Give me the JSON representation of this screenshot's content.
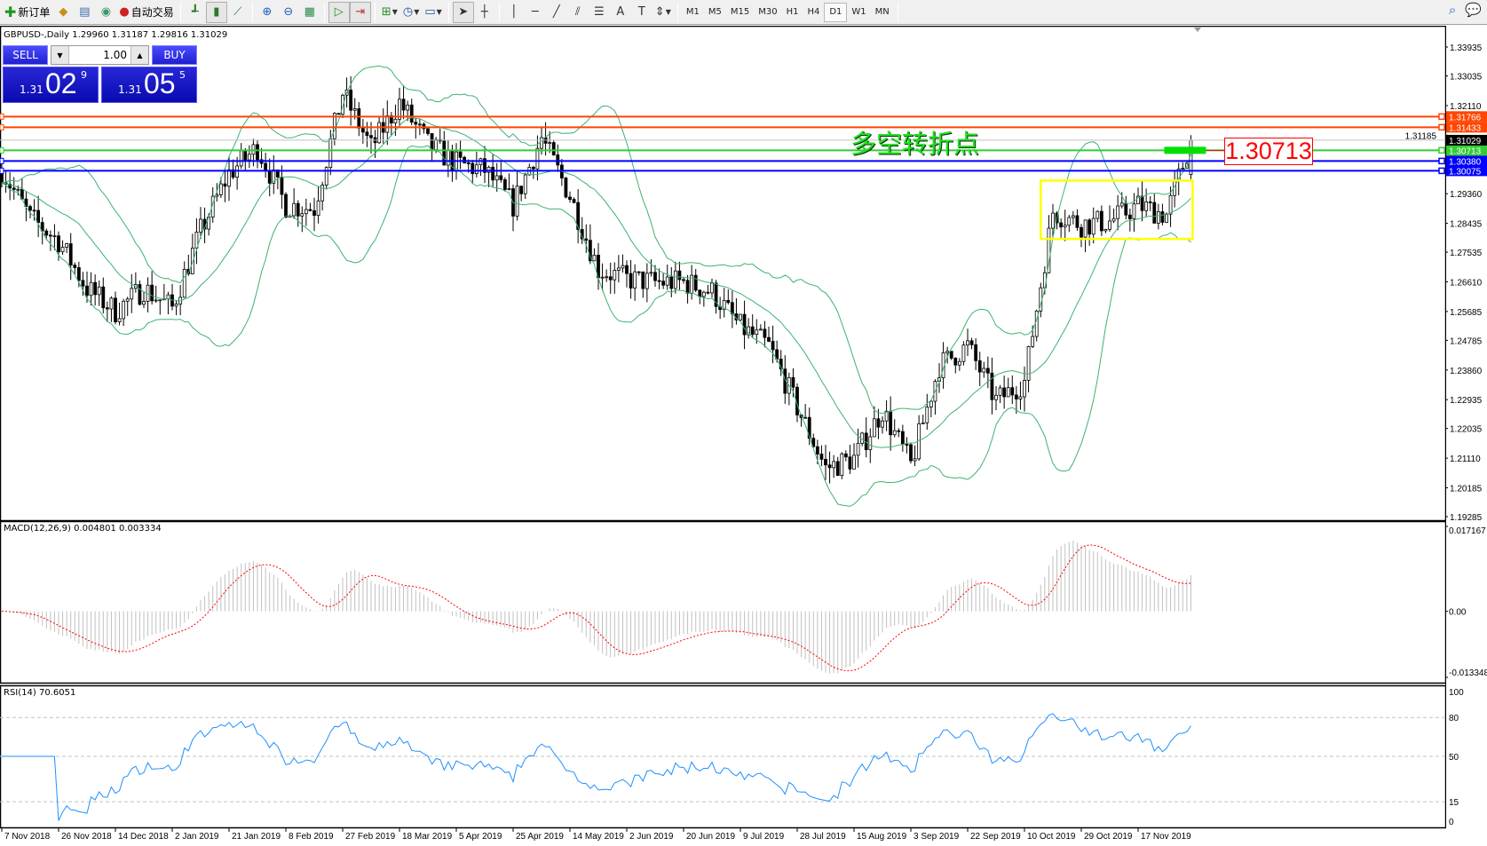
{
  "toolbar": {
    "new_order": "新订单",
    "auto_trading": "自动交易",
    "timeframes": [
      "M1",
      "M5",
      "M15",
      "M30",
      "H1",
      "H4",
      "D1",
      "W1",
      "MN"
    ],
    "active_timeframe": "D1",
    "icons": [
      "new-order-icon",
      "market-watch-icon",
      "data-window-icon",
      "navigator-icon",
      "auto-trading-icon",
      "bar-chart-icon",
      "candlestick-icon",
      "line-chart-icon",
      "zoom-in-icon",
      "zoom-out-icon",
      "tile-windows-icon",
      "auto-scroll-icon",
      "chart-shift-icon",
      "indicators-icon",
      "period-icon",
      "templates-icon",
      "cursor-icon",
      "crosshair-icon",
      "vertical-line-icon",
      "horizontal-line-icon",
      "trendline-icon",
      "fibonacci-fan-icon",
      "fibonacci-retracement-icon",
      "text-icon",
      "text-label-icon",
      "arrows-icon",
      "search-icon",
      "chat-icon"
    ]
  },
  "chart": {
    "header": "GBPUSD-,Daily  1.29960 1.31187 1.29816 1.31029",
    "trade_panel": {
      "sell": "SELL",
      "buy": "BUY",
      "lot": "1.00",
      "bid_prefix": "1.31",
      "bid_big": "02",
      "bid_sup": "9",
      "ask_prefix": "1.31",
      "ask_big": "05",
      "ask_sup": "5"
    },
    "annotation": "多空转折点",
    "price_label": "1.30713",
    "price_axis": [
      "1.33935",
      "1.33035",
      "1.32110",
      "1.29360",
      "1.28435",
      "1.27535",
      "1.26610",
      "1.25685",
      "1.24785",
      "1.23860",
      "1.22935",
      "1.22035",
      "1.21110",
      "1.20185",
      "1.19285"
    ],
    "hidden_axis_label": "1.31185",
    "bid": {
      "value": "1.31029",
      "color": "#000000"
    },
    "levels": [
      {
        "value": "1.31766",
        "color": "#ff4500"
      },
      {
        "value": "1.31433",
        "color": "#ff4500"
      },
      {
        "value": "1.30713",
        "color": "#32cd32"
      },
      {
        "value": "1.30380",
        "color": "#0000ff"
      },
      {
        "value": "1.30075",
        "color": "#0000ff"
      }
    ],
    "consolidation_box": {
      "top": 1.2977,
      "bottom": 1.2795,
      "color": "#ffff00"
    },
    "dates": [
      "7 Nov 2018",
      "26 Nov 2018",
      "14 Dec 2018",
      "2 Jan 2019",
      "21 Jan 2019",
      "8 Feb 2019",
      "27 Feb 2019",
      "18 Mar 2019",
      "5 Apr 2019",
      "25 Apr 2019",
      "14 May 2019",
      "2 Jun 2019",
      "20 Jun 2019",
      "9 Jul 2019",
      "28 Jul 2019",
      "15 Aug 2019",
      "3 Sep 2019",
      "22 Sep 2019",
      "10 Oct 2019",
      "29 Oct 2019",
      "17 Nov 2019"
    ],
    "ohlc_last": [
      1.2996,
      1.31187,
      1.29816,
      1.31029
    ],
    "close_samples_every_7_bars": [
      1.301,
      1.286,
      1.279,
      1.264,
      1.257,
      1.264,
      1.258,
      1.282,
      1.3,
      1.308,
      1.29,
      1.289,
      1.325,
      1.308,
      1.322,
      1.309,
      1.303,
      1.301,
      1.29,
      1.311,
      1.293,
      1.27,
      1.267,
      1.266,
      1.266,
      1.263,
      1.252,
      1.246,
      1.227,
      1.208,
      1.211,
      1.226,
      1.209,
      1.24,
      1.246,
      1.229,
      1.235,
      1.288,
      1.284,
      1.285,
      1.29,
      1.287
    ],
    "price_range": [
      1.19285,
      1.33935
    ],
    "band_color": "#3cb371"
  },
  "macd": {
    "label": "MACD(12,26,9) 0.004801 0.003334",
    "axis": [
      "0.017167",
      "0.00",
      "-0.013348"
    ],
    "range": [
      -0.013348,
      0.017167
    ],
    "hist_color": "#c0c0c0",
    "signal_color": "#ff0000"
  },
  "rsi": {
    "label": "RSI(14) 70.6051",
    "axis": [
      "100",
      "80",
      "50",
      "15",
      "0"
    ],
    "color": "#1e90ff"
  }
}
